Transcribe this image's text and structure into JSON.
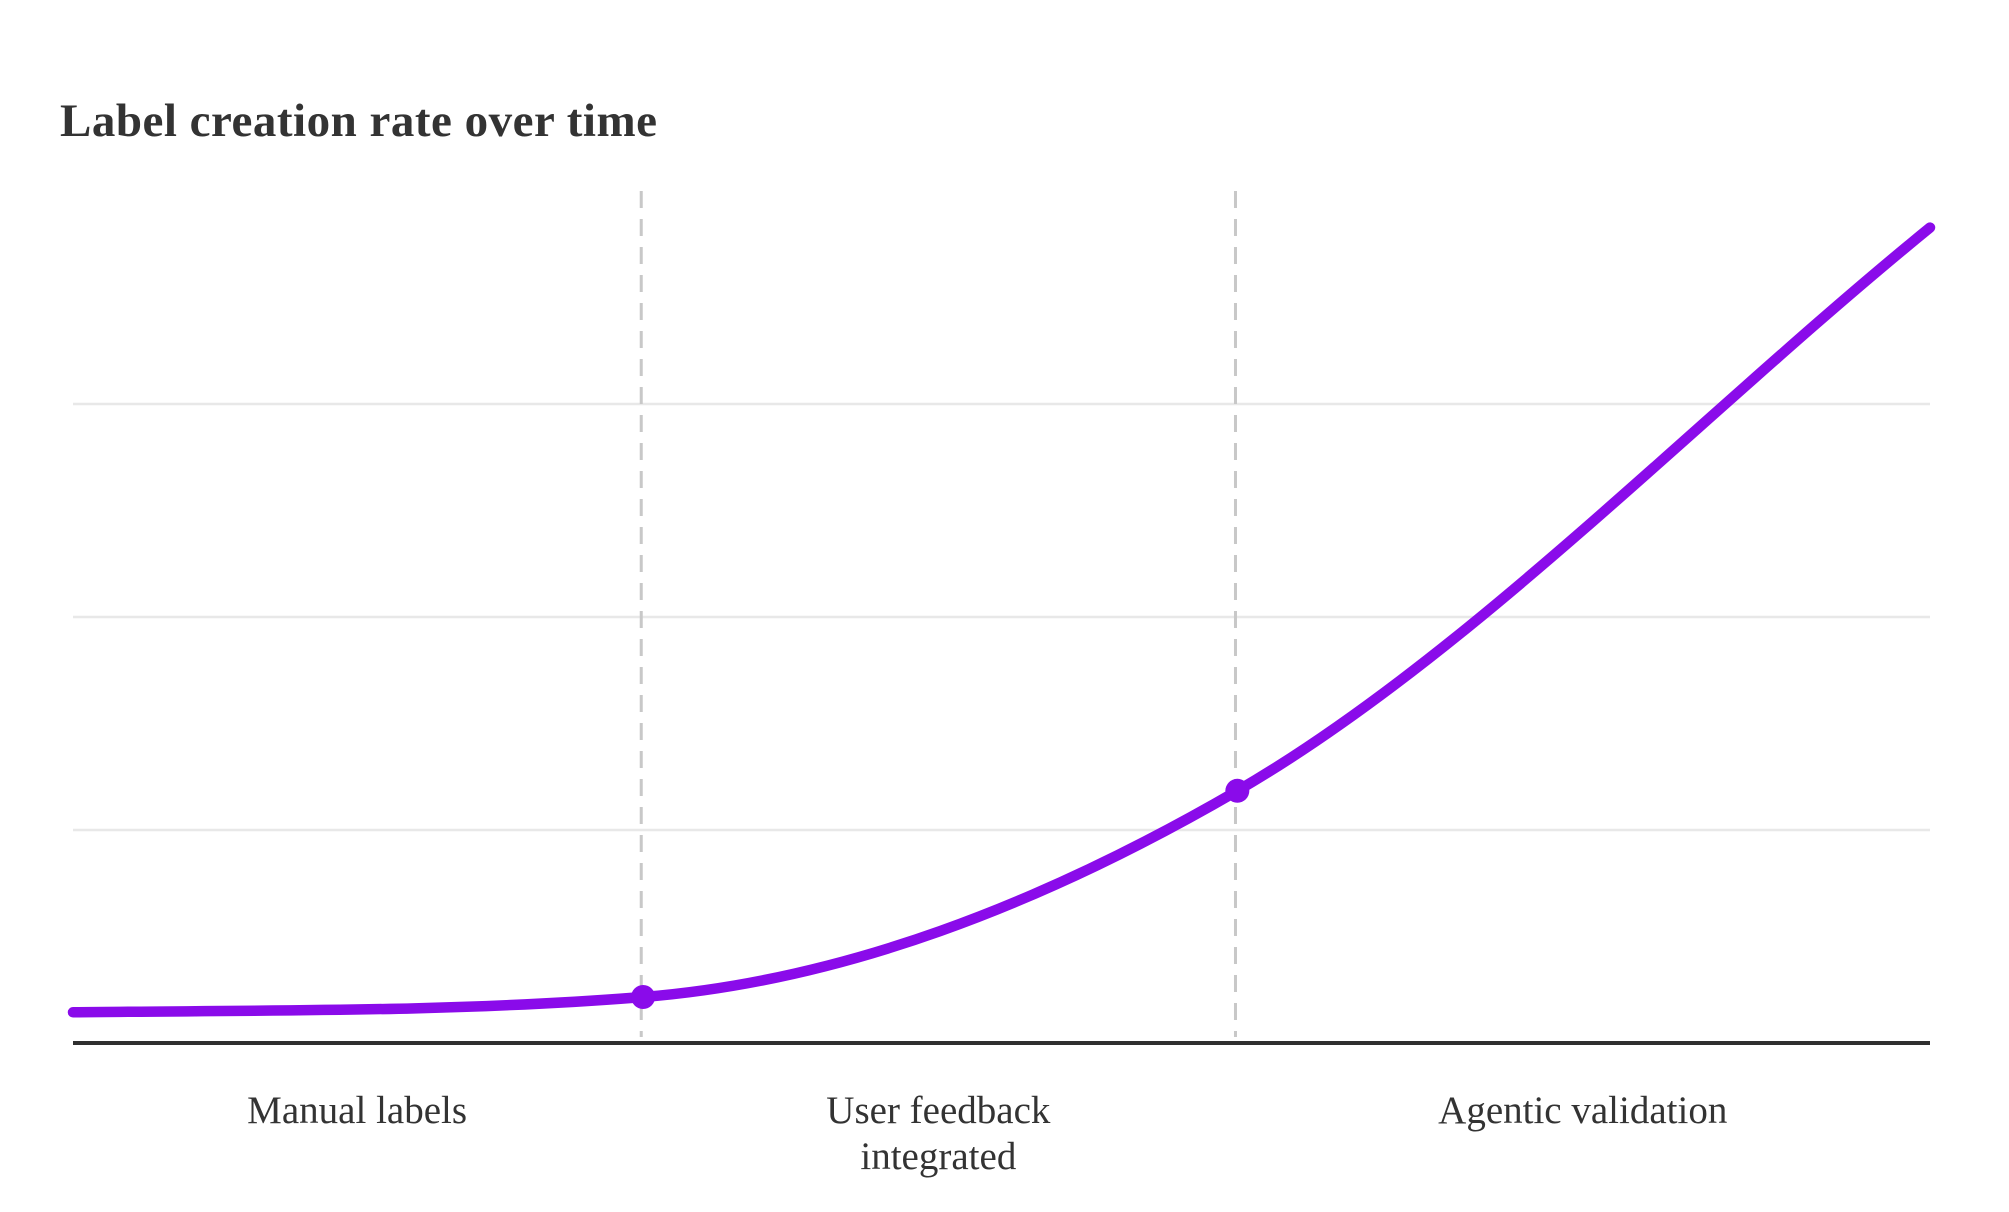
{
  "page": {
    "background_color": "#FFFFFF"
  },
  "chart_data": {
    "type": "line",
    "title": "Label creation rate over time",
    "xlabel": "",
    "ylabel": "",
    "legend": "none",
    "grid": "horizontal-only",
    "y_axis": {
      "range": [
        0,
        100
      ],
      "tick_labels_visible": false,
      "gridline_values": [
        25,
        50,
        75
      ]
    },
    "x_axis": {
      "range": [
        0,
        100
      ],
      "tick_labels_visible": false,
      "baseline_visible": true
    },
    "series": [
      {
        "name": "Label creation rate",
        "color": "#8A0BEA",
        "x": [
          0,
          30.7,
          62.7,
          100
        ],
        "values": [
          3.6,
          5.4,
          29.6,
          95.7
        ],
        "markers_at_indices": [
          1,
          2
        ],
        "smoothing": "monotone"
      }
    ],
    "phase_boundaries": [
      30.6,
      62.6
    ],
    "phases": [
      {
        "label": "Manual labels",
        "x_start": 0,
        "x_end": 30.6
      },
      {
        "label": "User feedback\nintegrated",
        "x_start": 30.6,
        "x_end": 62.6
      },
      {
        "label": "Agentic validation",
        "x_start": 62.6,
        "x_end": 100
      }
    ],
    "style": {
      "line_color": "#8A0BEA",
      "marker_color": "#8A0BEA",
      "gridline_color": "#E8E8E8",
      "phase_divider_color": "#C8C8C8",
      "axis_color": "#2F2F2F",
      "title_color": "#333333",
      "label_color": "#333333"
    }
  }
}
